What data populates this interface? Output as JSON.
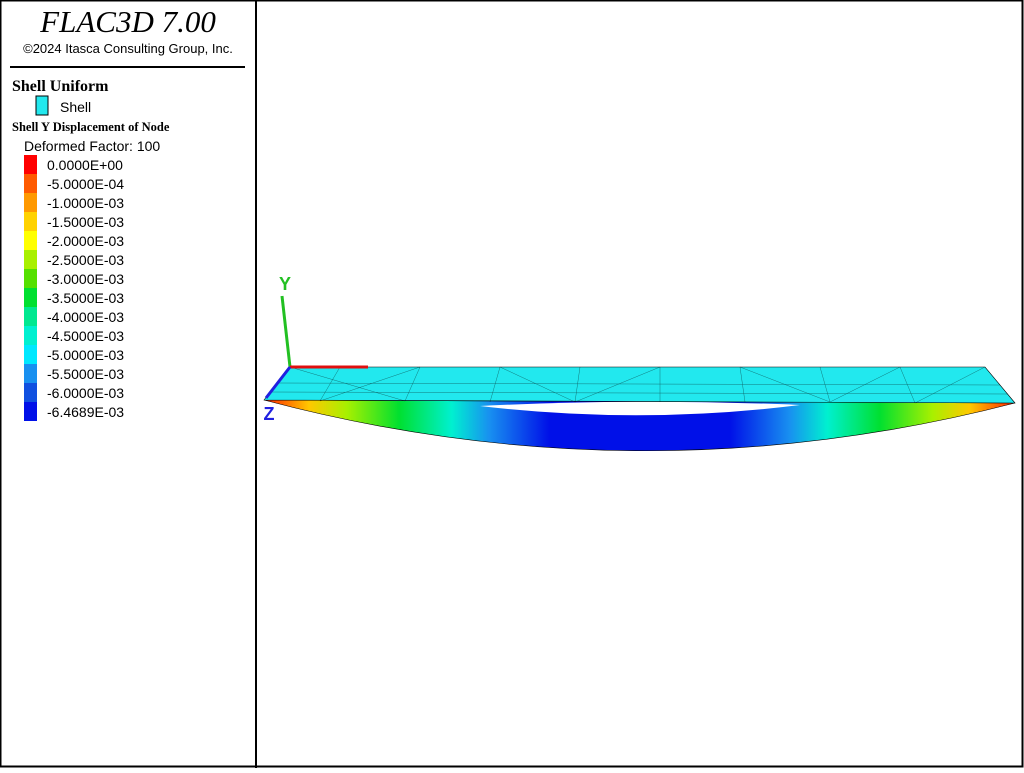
{
  "header": {
    "title": "FLAC3D 7.00",
    "copyright": "©2024 Itasca Consulting Group, Inc."
  },
  "legend": {
    "group_title": "Shell Uniform",
    "group_item": "Shell",
    "group_color": "#22e8ee",
    "contour_title": "Shell Y Displacement of Node",
    "factor": "Deformed Factor: 100",
    "scale": [
      {
        "label": "0.0000E+00",
        "color": "#ff0000"
      },
      {
        "label": "-5.0000E-04",
        "color": "#ff5a00"
      },
      {
        "label": "-1.0000E-03",
        "color": "#ff9900"
      },
      {
        "label": "-1.5000E-03",
        "color": "#ffd200"
      },
      {
        "label": "-2.0000E-03",
        "color": "#ffff00"
      },
      {
        "label": "-2.5000E-03",
        "color": "#a8f000"
      },
      {
        "label": "-3.0000E-03",
        "color": "#55e000"
      },
      {
        "label": "-3.5000E-03",
        "color": "#00e030"
      },
      {
        "label": "-4.0000E-03",
        "color": "#00e890"
      },
      {
        "label": "-4.5000E-03",
        "color": "#00f0d0"
      },
      {
        "label": "-5.0000E-03",
        "color": "#00e8ff"
      },
      {
        "label": "-5.5000E-03",
        "color": "#1890f0"
      },
      {
        "label": "-6.0000E-03",
        "color": "#1050e0"
      },
      {
        "label": "-6.4689E-03",
        "color": "#0010e8"
      }
    ]
  },
  "axes": {
    "y": "Y",
    "z": "Z"
  }
}
